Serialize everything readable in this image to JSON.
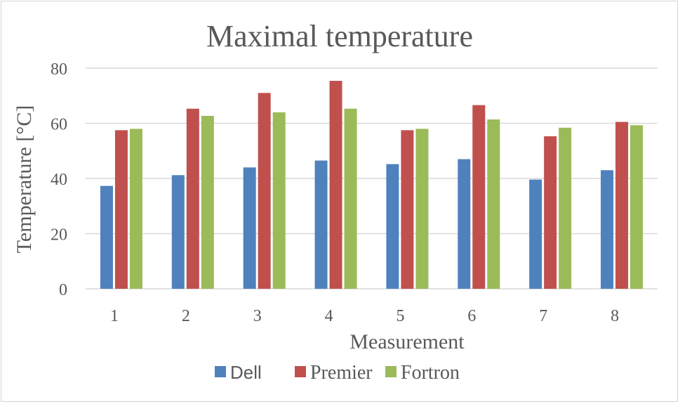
{
  "chart_data": {
    "type": "bar",
    "title": "Maximal temperature",
    "xlabel": "Measurement",
    "ylabel": "Temperature [°C]",
    "categories": [
      "1",
      "2",
      "3",
      "4",
      "5",
      "6",
      "7",
      "8"
    ],
    "ylim": [
      0,
      80
    ],
    "yticks": [
      "0",
      "20",
      "40",
      "60",
      "80"
    ],
    "grid": true,
    "legend_position": "bottom",
    "series": [
      {
        "name": "Dell",
        "color": "#4f81bd",
        "values": [
          37.3,
          41.2,
          44.0,
          46.5,
          45.2,
          47.0,
          39.6,
          43.0
        ]
      },
      {
        "name": "Premier",
        "color": "#c0504d",
        "values": [
          57.5,
          65.3,
          71.0,
          75.4,
          57.5,
          66.6,
          55.3,
          60.5
        ]
      },
      {
        "name": "Fortron",
        "color": "#9bbb59",
        "values": [
          58.0,
          62.7,
          64.0,
          65.3,
          58.0,
          61.4,
          58.4,
          59.3
        ]
      }
    ]
  }
}
